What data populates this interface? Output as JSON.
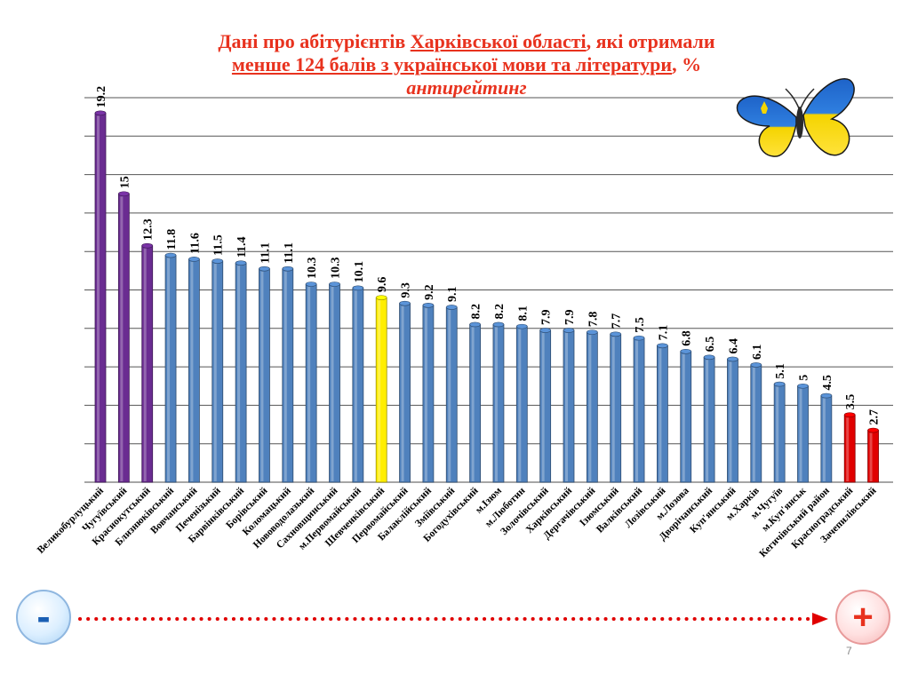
{
  "title": {
    "line1_a": "Дані про абітурієнтів ",
    "line1_u": "Харківської  області",
    "line1_b": ", які отримали",
    "line2_u": "менше 124 балів  з української мови та літератури",
    "line2_b": ", %",
    "line3": "антирейтинг"
  },
  "chart_data": {
    "type": "bar",
    "title": "Дані про абітурієнтів Харківської  області, які отримали менше 124 балів  з української мови та літератури, % антирейтинг",
    "xlabel": "",
    "ylabel": "",
    "ylim": [
      0,
      20
    ],
    "ygrid_step": 2,
    "grid": true,
    "categories": [
      "Великобурлуцький",
      "Чугуївський",
      "Краснокутський",
      "Близнюківський",
      "Вовчанський",
      "Печенізький",
      "Барвінківський",
      "Борівський",
      "Коломацький",
      "Нововодолазький",
      "Сахновщинський",
      "м.Первомайський",
      "Шевченківський",
      "Первомайський",
      "Балаклійський",
      "Зміївський",
      "Богодухівський",
      "м.Ізюм",
      "м.Люботин",
      "Золочівський",
      "Харківський",
      "Дергачівський",
      "Ізюмський",
      "Валківський",
      "Лозівський",
      "м.Лозова",
      "Дворічанський",
      "Куп'янський",
      "м.Харків",
      "м.Чугуїв",
      "м.Куп'янськ",
      "Кегичівський район",
      "Красноградський",
      "Зачепилівський"
    ],
    "values": [
      19.2,
      15,
      12.3,
      11.8,
      11.6,
      11.5,
      11.4,
      11.1,
      11.1,
      10.3,
      10.3,
      10.1,
      9.6,
      9.3,
      9.2,
      9.1,
      8.2,
      8.2,
      8.1,
      7.9,
      7.9,
      7.8,
      7.7,
      7.5,
      7.1,
      6.8,
      6.5,
      6.4,
      6.1,
      5.1,
      5,
      4.5,
      3.5,
      2.7
    ],
    "value_labels": [
      "19.2",
      "15",
      "12.3",
      "11.8",
      "11.6",
      "11.5",
      "11.4",
      "11.1",
      "11.1",
      "10.3",
      "10.3",
      "10.1",
      "9.6",
      "9.3",
      "9.2",
      "9.1",
      "8.2",
      "8.2",
      "8.1",
      "7.9",
      "7.9",
      "7.8",
      "7.7",
      "7.5",
      "7.1",
      "6.8",
      "6.5",
      "6.4",
      "6.1",
      "5.1",
      "5",
      "4.5",
      "3.5",
      "2.7"
    ],
    "bar_colors": [
      "#6a2c91",
      "#6a2c91",
      "#6a2c91",
      "#4f81bd",
      "#4f81bd",
      "#4f81bd",
      "#4f81bd",
      "#4f81bd",
      "#4f81bd",
      "#4f81bd",
      "#4f81bd",
      "#4f81bd",
      "#ffee00",
      "#4f81bd",
      "#4f81bd",
      "#4f81bd",
      "#4f81bd",
      "#4f81bd",
      "#4f81bd",
      "#4f81bd",
      "#4f81bd",
      "#4f81bd",
      "#4f81bd",
      "#4f81bd",
      "#4f81bd",
      "#4f81bd",
      "#4f81bd",
      "#4f81bd",
      "#4f81bd",
      "#4f81bd",
      "#4f81bd",
      "#4f81bd",
      "#e00000",
      "#e00000"
    ]
  },
  "scale": {
    "minus": "-",
    "plus": "+",
    "arrow_color": "#e00000"
  },
  "page_number": "7",
  "icons": {
    "decoration": "butterfly-icon"
  }
}
